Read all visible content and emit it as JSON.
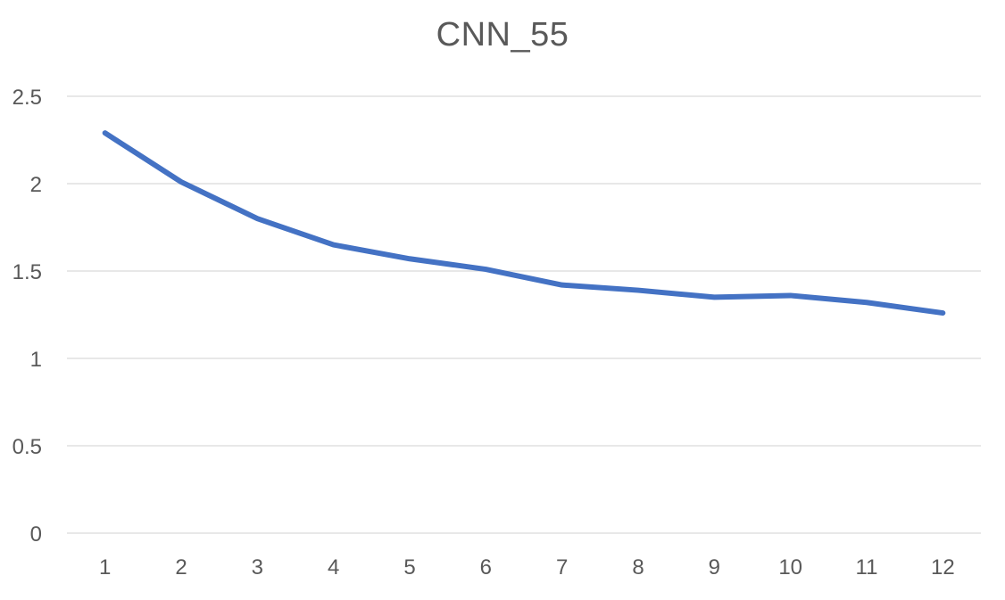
{
  "chart_data": {
    "type": "line",
    "title": "CNN_55",
    "xlabel": "",
    "ylabel": "",
    "categories": [
      "1",
      "2",
      "3",
      "4",
      "5",
      "6",
      "7",
      "8",
      "9",
      "10",
      "11",
      "12"
    ],
    "series": [
      {
        "values": [
          2.29,
          2.01,
          1.8,
          1.65,
          1.57,
          1.51,
          1.42,
          1.39,
          1.35,
          1.36,
          1.32,
          1.26
        ]
      }
    ],
    "ylim": [
      0,
      2.5
    ],
    "yticks": [
      "0",
      "0.5",
      "1",
      "1.5",
      "2",
      "2.5"
    ],
    "grid": true,
    "legend": "none",
    "colors": {
      "line": "#4472C4",
      "grid": "#D9D9D9",
      "text": "#595959"
    }
  }
}
